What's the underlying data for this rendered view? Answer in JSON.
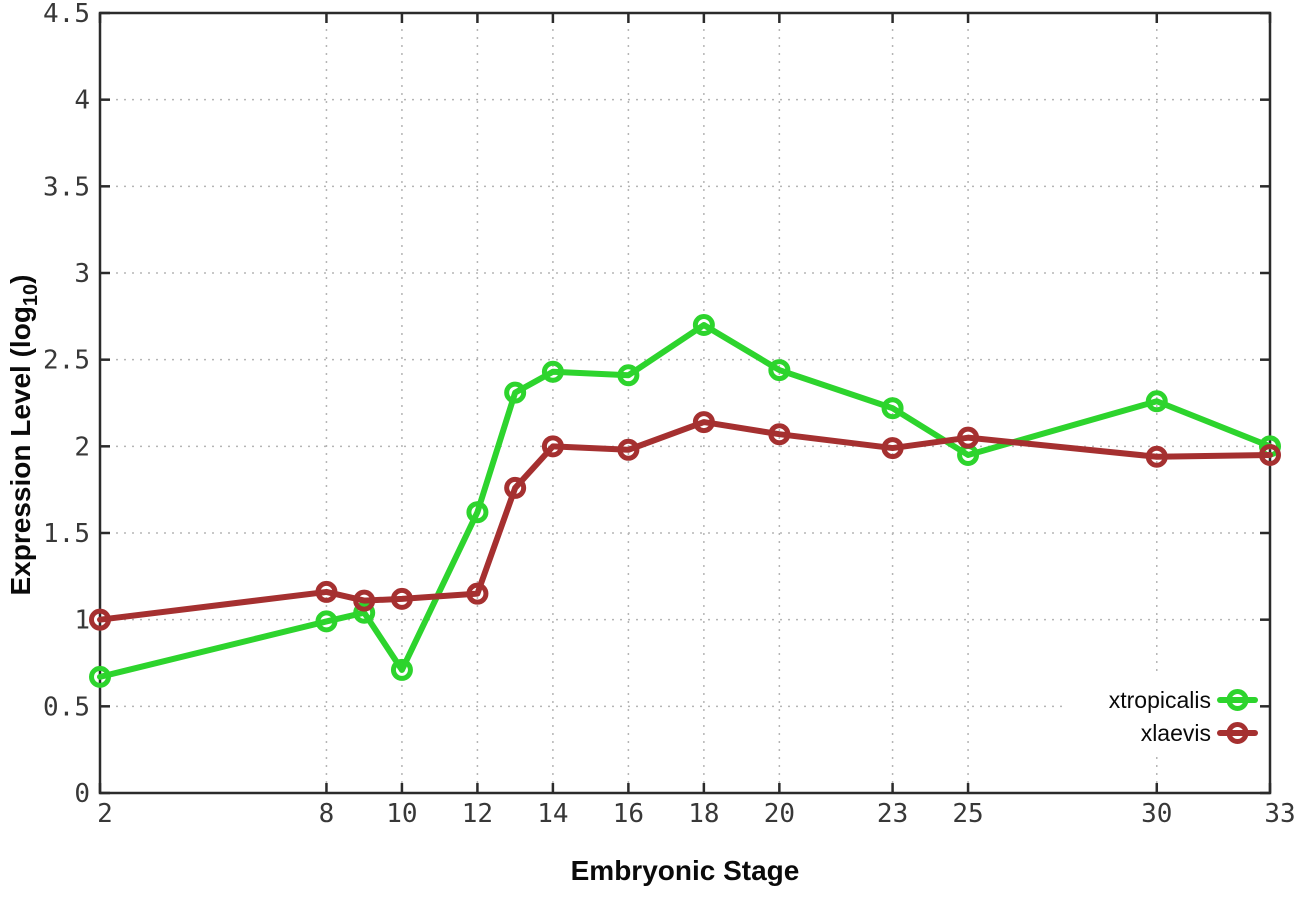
{
  "chart_data": {
    "type": "line",
    "title": "",
    "xlabel": "Embryonic Stage",
    "ylabel": "Expression Level (log10)",
    "ylabel_parts": {
      "base": "Expression Level (log",
      "subscript": "10",
      "suffix": ")"
    },
    "xlim": [
      2,
      33
    ],
    "ylim": [
      0,
      4.5
    ],
    "xticks": [
      2,
      8,
      10,
      12,
      14,
      16,
      18,
      20,
      23,
      25,
      30,
      33
    ],
    "yticks": [
      0,
      0.5,
      1,
      1.5,
      2,
      2.5,
      3,
      3.5,
      4,
      4.5
    ],
    "grid": true,
    "legend_position": "inside-bottom-right",
    "x": [
      2,
      8,
      9,
      10,
      12,
      13,
      14,
      16,
      18,
      20,
      23,
      25,
      30,
      33
    ],
    "series": [
      {
        "name": "xtropicalis",
        "color": "#2dd42d",
        "marker": "open-circle",
        "values": [
          0.67,
          0.99,
          1.04,
          0.71,
          1.62,
          2.31,
          2.43,
          2.41,
          2.7,
          2.44,
          2.22,
          1.95,
          2.26,
          2.0
        ]
      },
      {
        "name": "xlaevis",
        "color": "#a53030",
        "marker": "open-circle",
        "values": [
          1.0,
          1.16,
          1.11,
          1.12,
          1.15,
          1.76,
          2.0,
          1.98,
          2.14,
          2.07,
          1.99,
          2.05,
          1.94,
          1.95
        ]
      }
    ]
  }
}
